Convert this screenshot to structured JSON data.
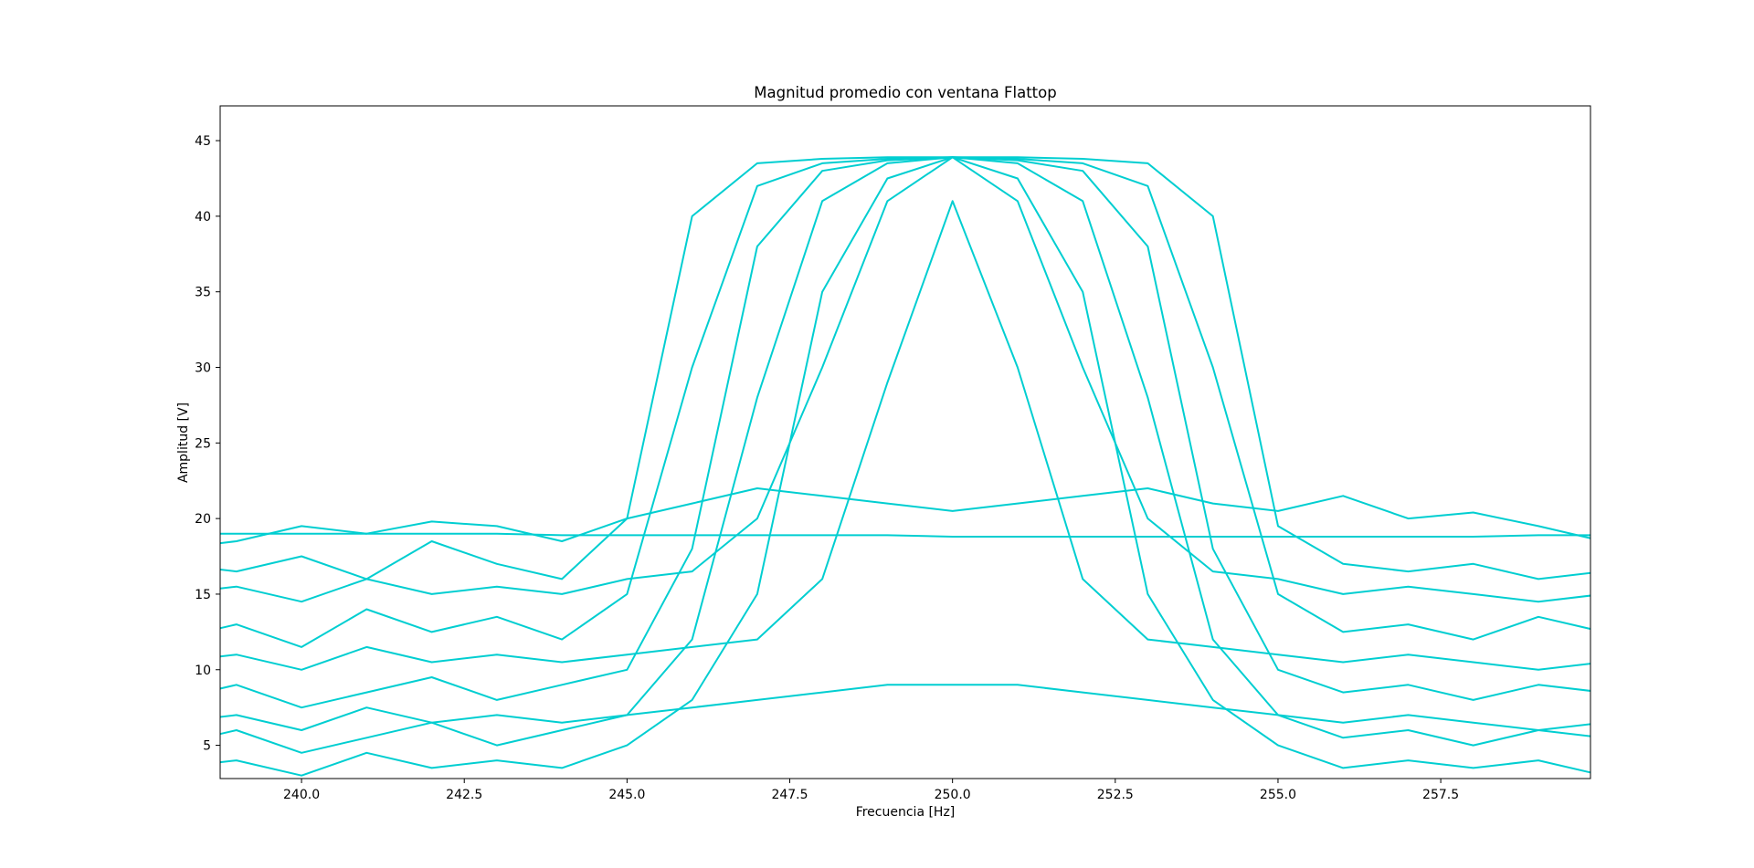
{
  "chart_data": {
    "type": "line",
    "title": "Magnitud promedio con ventana Flattop",
    "xlabel": "Frecuencia [Hz]",
    "ylabel": "Amplitud [V]",
    "xlim": [
      238.75,
      259.8
    ],
    "ylim": [
      2.8,
      47.3
    ],
    "xticks": [
      240.0,
      242.5,
      245.0,
      247.5,
      250.0,
      252.5,
      255.0,
      257.5
    ],
    "xtick_labels": [
      "240.0",
      "242.5",
      "245.0",
      "247.5",
      "250.0",
      "252.5",
      "255.0",
      "257.5"
    ],
    "yticks": [
      5,
      10,
      15,
      20,
      25,
      30,
      35,
      40,
      45
    ],
    "ytick_labels": [
      "5",
      "10",
      "15",
      "20",
      "25",
      "30",
      "35",
      "40",
      "45"
    ],
    "grid": false,
    "line_color": "#00ced1",
    "x": [
      238.0,
      239.0,
      240.0,
      241.0,
      242.0,
      243.0,
      244.0,
      245.0,
      246.0,
      247.0,
      248.0,
      249.0,
      250.0,
      251.0,
      252.0,
      253.0,
      254.0,
      255.0,
      256.0,
      257.0,
      258.0,
      259.0,
      260.0
    ],
    "series": [
      {
        "values": [
          17.0,
          16.5,
          17.5,
          16.0,
          18.5,
          17.0,
          16.0,
          20.0,
          40.0,
          43.5,
          43.8,
          43.9,
          43.9,
          43.9,
          43.8,
          43.5,
          40.0,
          19.5,
          17.0,
          16.5,
          17.0,
          16.0,
          16.5
        ]
      },
      {
        "values": [
          12.0,
          13.0,
          11.5,
          14.0,
          12.5,
          13.5,
          12.0,
          15.0,
          30.0,
          42.0,
          43.5,
          43.8,
          43.9,
          43.8,
          43.5,
          42.0,
          30.0,
          15.0,
          12.5,
          13.0,
          12.0,
          13.5,
          12.5
        ]
      },
      {
        "values": [
          8.0,
          9.0,
          7.5,
          8.5,
          9.5,
          8.0,
          9.0,
          10.0,
          18.0,
          38.0,
          43.0,
          43.7,
          43.9,
          43.7,
          43.0,
          38.0,
          18.0,
          10.0,
          8.5,
          9.0,
          8.0,
          9.0,
          8.5
        ]
      },
      {
        "values": [
          5.0,
          6.0,
          4.5,
          5.5,
          6.5,
          5.0,
          6.0,
          7.0,
          12.0,
          28.0,
          41.0,
          43.5,
          43.9,
          43.5,
          41.0,
          28.0,
          12.0,
          7.0,
          5.5,
          6.0,
          5.0,
          6.0,
          5.5
        ]
      },
      {
        "values": [
          3.5,
          4.0,
          3.0,
          4.5,
          3.5,
          4.0,
          3.5,
          5.0,
          8.0,
          15.0,
          35.0,
          42.5,
          43.9,
          42.5,
          35.0,
          15.0,
          8.0,
          5.0,
          3.5,
          4.0,
          3.5,
          4.0,
          3.0
        ]
      },
      {
        "values": [
          15.0,
          15.5,
          14.5,
          16.0,
          15.0,
          15.5,
          15.0,
          16.0,
          16.5,
          20.0,
          30.0,
          41.0,
          43.9,
          41.0,
          30.0,
          20.0,
          16.5,
          16.0,
          15.0,
          15.5,
          15.0,
          14.5,
          15.0
        ]
      },
      {
        "values": [
          10.5,
          11.0,
          10.0,
          11.5,
          10.5,
          11.0,
          10.5,
          11.0,
          11.5,
          12.0,
          16.0,
          29.0,
          41.0,
          30.0,
          16.0,
          12.0,
          11.5,
          11.0,
          10.5,
          11.0,
          10.5,
          10.0,
          10.5
        ]
      },
      {
        "values": [
          6.5,
          7.0,
          6.0,
          7.5,
          6.5,
          7.0,
          6.5,
          7.0,
          7.5,
          8.0,
          8.5,
          9.0,
          9.0,
          9.0,
          8.5,
          8.0,
          7.5,
          7.0,
          6.5,
          7.0,
          6.5,
          6.0,
          6.5
        ]
      },
      {
        "values": [
          19.0,
          19.0,
          19.0,
          19.0,
          19.0,
          19.0,
          18.9,
          18.9,
          18.9,
          18.9,
          18.9,
          18.9,
          18.8,
          18.8,
          18.8,
          18.8,
          18.8,
          18.8,
          18.8,
          18.8,
          18.8,
          18.9,
          18.9
        ]
      },
      {
        "values": [
          18.0,
          18.5,
          19.5,
          19.0,
          19.8,
          19.5,
          18.5,
          20.0,
          21.0,
          22.0,
          21.5,
          21.0,
          20.5,
          21.0,
          21.5,
          22.0,
          21.0,
          20.5,
          21.5,
          20.0,
          20.4,
          19.5,
          18.5
        ]
      }
    ]
  }
}
